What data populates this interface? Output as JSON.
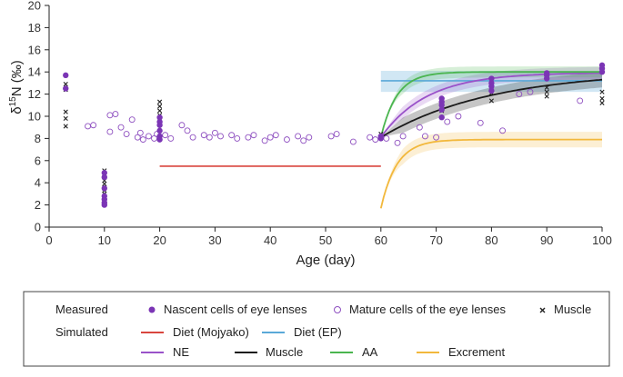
{
  "chart_data": {
    "type": "scatter",
    "title": "",
    "xlabel": "Age (day)",
    "ylabel_parts": [
      "δ",
      "15",
      "N (‰)"
    ],
    "xlim": [
      0,
      100
    ],
    "ylim": [
      0,
      20
    ],
    "xticks": [
      0,
      10,
      20,
      30,
      40,
      50,
      60,
      70,
      80,
      90,
      100
    ],
    "yticks": [
      0,
      2,
      4,
      6,
      8,
      10,
      12,
      14,
      16,
      18,
      20
    ],
    "grid": false,
    "colors": {
      "nascent": "#7b35b5",
      "mature": "#8e4fc0",
      "muscle_marker": "#222222",
      "diet_mojyako": "#d9453e",
      "diet_ep": "#5aa9d8",
      "ne": "#9a52c9",
      "muscle_line": "#1b1b1b",
      "aa": "#4ab54f",
      "excrement": "#f2b83c"
    },
    "points": {
      "nascent": [
        [
          3,
          13.7
        ],
        [
          3,
          12.5
        ],
        [
          10,
          4.9
        ],
        [
          10,
          4.5
        ],
        [
          10,
          3.5
        ],
        [
          10,
          2.8
        ],
        [
          10,
          2.5
        ],
        [
          10,
          2.2
        ],
        [
          10,
          2.0
        ],
        [
          20,
          9.9
        ],
        [
          20,
          9.5
        ],
        [
          20,
          9.2
        ],
        [
          20,
          8.7
        ],
        [
          20,
          8.2
        ],
        [
          20,
          7.9
        ],
        [
          60,
          8.2
        ],
        [
          60,
          8.0
        ],
        [
          71,
          11.6
        ],
        [
          71,
          11.3
        ],
        [
          71,
          11.0
        ],
        [
          71,
          10.6
        ],
        [
          71,
          9.9
        ],
        [
          80,
          13.4
        ],
        [
          80,
          13.0
        ],
        [
          80,
          12.7
        ],
        [
          80,
          12.3
        ],
        [
          90,
          13.9
        ],
        [
          90,
          13.7
        ],
        [
          90,
          13.4
        ],
        [
          100,
          14.6
        ],
        [
          100,
          14.3
        ],
        [
          100,
          14.0
        ]
      ],
      "mature": [
        [
          7,
          9.1
        ],
        [
          8,
          9.2
        ],
        [
          11,
          10.1
        ],
        [
          11,
          8.6
        ],
        [
          12,
          10.2
        ],
        [
          13,
          9.0
        ],
        [
          14,
          8.4
        ],
        [
          15,
          9.7
        ],
        [
          16,
          8.1
        ],
        [
          16.5,
          8.5
        ],
        [
          17,
          7.9
        ],
        [
          18,
          8.2
        ],
        [
          19,
          8.0
        ],
        [
          19.5,
          8.4
        ],
        [
          21,
          8.3
        ],
        [
          22,
          8.0
        ],
        [
          24,
          9.2
        ],
        [
          25,
          8.7
        ],
        [
          26,
          8.1
        ],
        [
          28,
          8.3
        ],
        [
          29,
          8.1
        ],
        [
          30,
          8.5
        ],
        [
          31,
          8.2
        ],
        [
          33,
          8.3
        ],
        [
          34,
          8.0
        ],
        [
          36,
          8.1
        ],
        [
          37,
          8.3
        ],
        [
          39,
          7.8
        ],
        [
          40,
          8.1
        ],
        [
          41,
          8.3
        ],
        [
          43,
          7.9
        ],
        [
          45,
          8.2
        ],
        [
          46,
          7.8
        ],
        [
          47,
          8.1
        ],
        [
          51,
          8.2
        ],
        [
          52,
          8.4
        ],
        [
          55,
          7.7
        ],
        [
          58,
          8.1
        ],
        [
          59,
          7.9
        ],
        [
          61,
          8.0
        ],
        [
          63,
          7.6
        ],
        [
          64,
          8.2
        ],
        [
          67,
          9.0
        ],
        [
          68,
          8.2
        ],
        [
          70,
          8.1
        ],
        [
          72,
          9.5
        ],
        [
          74,
          10.0
        ],
        [
          78,
          9.4
        ],
        [
          82,
          8.7
        ],
        [
          85,
          12.0
        ],
        [
          87,
          12.2
        ],
        [
          96,
          11.4
        ]
      ],
      "muscle": [
        [
          3,
          12.9
        ],
        [
          3,
          12.4
        ],
        [
          3,
          10.4
        ],
        [
          3,
          9.8
        ],
        [
          3,
          9.1
        ],
        [
          10,
          5.1
        ],
        [
          10,
          4.8
        ],
        [
          10,
          4.5
        ],
        [
          10,
          4.2
        ],
        [
          10,
          3.9
        ],
        [
          10,
          3.6
        ],
        [
          10,
          3.3
        ],
        [
          10,
          3.0
        ],
        [
          20,
          11.3
        ],
        [
          20,
          10.9
        ],
        [
          20,
          10.5
        ],
        [
          20,
          10.1
        ],
        [
          20,
          9.6
        ],
        [
          60,
          8.4
        ],
        [
          60,
          8.1
        ],
        [
          71,
          11.3
        ],
        [
          71,
          10.8
        ],
        [
          71,
          10.5
        ],
        [
          80,
          12.6
        ],
        [
          80,
          12.1
        ],
        [
          80,
          11.4
        ],
        [
          90,
          12.6
        ],
        [
          90,
          12.2
        ],
        [
          90,
          11.8
        ],
        [
          100,
          12.2
        ],
        [
          100,
          11.6
        ],
        [
          100,
          11.2
        ]
      ]
    },
    "lines": {
      "diet_mojyako": {
        "x": [
          20,
          60
        ],
        "y": [
          5.5,
          5.5
        ]
      },
      "diet_ep": {
        "x": [
          60,
          100
        ],
        "y": [
          13.2,
          13.2
        ],
        "band": [
          12.2,
          14.1
        ]
      },
      "ne": {
        "start": [
          60,
          8.1
        ],
        "end": [
          100,
          13.9
        ],
        "k": 0.12,
        "band": 0.55
      },
      "muscle": {
        "start": [
          60,
          8.1
        ],
        "end": [
          100,
          13.3
        ],
        "k": 0.05,
        "band": 0.7
      },
      "aa": {
        "start": [
          60,
          8.1
        ],
        "end": [
          100,
          14.0
        ],
        "k": 0.35,
        "band": 0.5
      },
      "excrement": {
        "start": [
          60,
          1.7
        ],
        "end": [
          100,
          7.9
        ],
        "k": 0.35,
        "band": 0.7
      }
    },
    "legend": {
      "measured_label": "Measured",
      "simulated_label": "Simulated",
      "nascent": "Nascent cells of eye lenses",
      "mature": "Mature cells of the eye lenses",
      "muscle_points": "Muscle",
      "diet_mojyako": "Diet (Mojyako)",
      "diet_ep": "Diet (EP)",
      "ne": "NE",
      "muscle_line": "Muscle",
      "aa": "AA",
      "excrement": "Excrement"
    }
  }
}
